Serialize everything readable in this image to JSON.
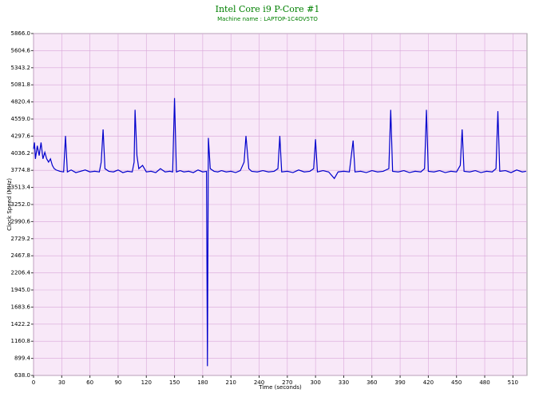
{
  "chart_data": {
    "type": "line",
    "title": "Intel Core i9 P-Core #1",
    "subtitle": "Machine name : LAPTOP-1C4OV5TO",
    "x_label": "Time (seconds)",
    "y_label": "Clock Speed (MHz)",
    "color": "#0000cc",
    "grid": true,
    "xlim": [
      0,
      525
    ],
    "xticks": [
      0,
      30,
      60,
      90,
      120,
      150,
      180,
      210,
      240,
      270,
      300,
      330,
      360,
      390,
      420,
      450,
      480,
      510
    ],
    "ylim": [
      638,
      5866
    ],
    "yticks": [
      {
        "value": 638,
        "label": "638.0"
      },
      899.4,
      1160.8,
      1422.2,
      1683.6,
      {
        "value": 1945,
        "label": "1945.0"
      },
      2206.4,
      2467.8,
      2729.2,
      2990.6,
      {
        "value": 3252,
        "label": "3252.0"
      },
      3513.4,
      3774.8,
      4036.2,
      4297.6,
      {
        "value": 4559,
        "label": "4559.0"
      },
      4820.4,
      5081.8,
      5343.2,
      5604.6,
      {
        "value": 5866,
        "label": "5866.0"
      }
    ],
    "x": [
      0,
      1,
      2,
      4,
      6,
      8,
      10,
      12,
      14,
      16,
      18,
      20,
      22,
      24,
      28,
      32,
      34,
      36,
      40,
      45,
      50,
      55,
      60,
      65,
      70,
      72,
      74,
      76,
      80,
      85,
      90,
      95,
      100,
      105,
      107,
      108,
      110,
      112,
      116,
      120,
      125,
      130,
      135,
      140,
      145,
      148,
      150,
      152,
      156,
      160,
      165,
      170,
      175,
      180,
      184,
      185,
      186,
      188,
      192,
      196,
      200,
      205,
      210,
      215,
      220,
      224,
      226,
      229,
      232,
      238,
      244,
      250,
      256,
      260,
      262,
      264,
      270,
      276,
      282,
      288,
      294,
      298,
      300,
      302,
      308,
      314,
      320,
      324,
      330,
      336,
      340,
      342,
      348,
      354,
      360,
      366,
      372,
      378,
      380,
      382,
      388,
      394,
      400,
      406,
      412,
      416,
      418,
      420,
      426,
      432,
      438,
      444,
      450,
      454,
      456,
      458,
      464,
      470,
      476,
      482,
      488,
      492,
      494,
      496,
      502,
      508,
      514,
      520,
      524
    ],
    "values": [
      4100,
      4200,
      3950,
      4150,
      4000,
      4200,
      3950,
      4050,
      3950,
      3900,
      3950,
      3850,
      3800,
      3780,
      3760,
      3750,
      4300,
      3750,
      3780,
      3740,
      3760,
      3780,
      3750,
      3760,
      3750,
      3900,
      4400,
      3800,
      3760,
      3750,
      3780,
      3740,
      3760,
      3750,
      3900,
      4700,
      4000,
      3800,
      3850,
      3750,
      3760,
      3740,
      3800,
      3750,
      3760,
      3750,
      4880,
      3750,
      3770,
      3750,
      3760,
      3740,
      3780,
      3750,
      3760,
      780,
      4270,
      3800,
      3760,
      3750,
      3770,
      3750,
      3760,
      3740,
      3770,
      3900,
      4300,
      3800,
      3760,
      3750,
      3770,
      3750,
      3760,
      3800,
      4300,
      3750,
      3760,
      3740,
      3780,
      3750,
      3760,
      3800,
      4250,
      3750,
      3770,
      3750,
      3650,
      3750,
      3760,
      3750,
      4230,
      3750,
      3760,
      3740,
      3770,
      3750,
      3760,
      3800,
      4700,
      3760,
      3750,
      3770,
      3740,
      3760,
      3750,
      3800,
      4700,
      3760,
      3750,
      3770,
      3740,
      3760,
      3750,
      3850,
      4400,
      3760,
      3750,
      3770,
      3740,
      3760,
      3750,
      3800,
      4680,
      3760,
      3770,
      3740,
      3780,
      3750,
      3760
    ]
  }
}
